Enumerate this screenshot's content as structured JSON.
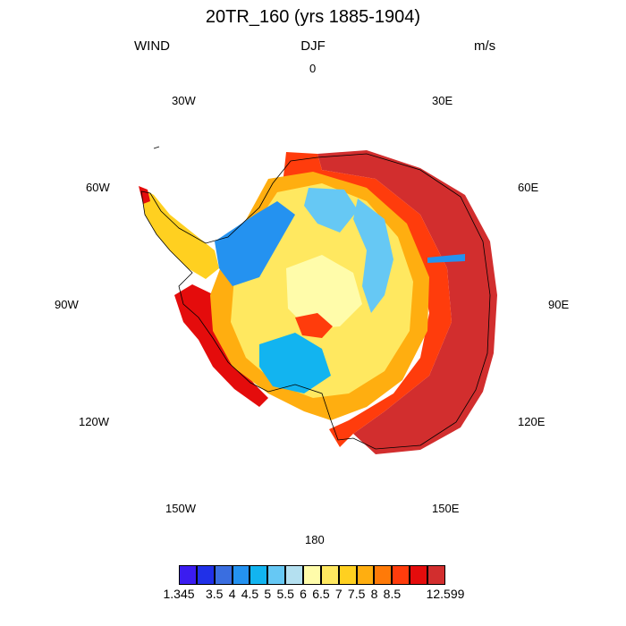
{
  "title": "20TR_160 (yrs 1885-1904)",
  "variable": "WIND",
  "season": "DJF",
  "units": "m/s",
  "longitude_labels": [
    "0",
    "30E",
    "60E",
    "90E",
    "120E",
    "150E",
    "180",
    "150W",
    "120W",
    "90W",
    "60W",
    "30W"
  ],
  "colorbar": {
    "colors": [
      "#3b1cf0",
      "#2030e8",
      "#3a6ee0",
      "#2492f0",
      "#12b4f0",
      "#66c8f4",
      "#b4e0f0",
      "#fffcaa",
      "#ffe860",
      "#ffd020",
      "#ffae10",
      "#ff7a08",
      "#ff3c0c",
      "#e40c0c",
      "#d22e2e"
    ],
    "labels": [
      "1.345",
      "3.5",
      "4",
      "4.5",
      "5",
      "5.5",
      "6",
      "6.5",
      "7",
      "7.5",
      "8",
      "8.5",
      "12.599"
    ]
  }
}
